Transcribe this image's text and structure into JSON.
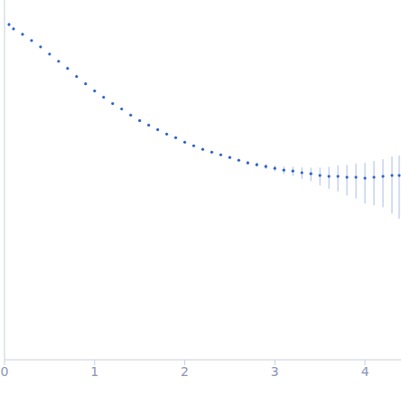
{
  "chart_data": {
    "type": "scatter",
    "x": [
      0.05,
      0.1,
      0.2,
      0.3,
      0.4,
      0.5,
      0.6,
      0.7,
      0.8,
      0.9,
      1.0,
      1.1,
      1.2,
      1.3,
      1.4,
      1.5,
      1.6,
      1.7,
      1.8,
      1.9,
      2.0,
      2.1,
      2.2,
      2.3,
      2.4,
      2.5,
      2.6,
      2.7,
      2.8,
      2.9,
      3.0,
      3.1,
      3.2,
      3.3,
      3.4,
      3.5,
      3.6,
      3.7,
      3.8,
      3.9,
      4.0,
      4.1,
      4.2,
      4.3,
      4.38
    ],
    "values": [
      1.07,
      0.955,
      0.832,
      0.708,
      0.603,
      0.501,
      0.417,
      0.347,
      0.282,
      0.234,
      0.195,
      0.166,
      0.141,
      0.123,
      0.105,
      0.0912,
      0.0813,
      0.0724,
      0.0646,
      0.0589,
      0.0525,
      0.0479,
      0.0437,
      0.0407,
      0.038,
      0.0355,
      0.0331,
      0.0309,
      0.0295,
      0.0282,
      0.0269,
      0.0257,
      0.0251,
      0.024,
      0.0234,
      0.0224,
      0.0219,
      0.0219,
      0.0214,
      0.0214,
      0.0209,
      0.0214,
      0.0219,
      0.0224,
      0.0224
    ],
    "errors": [
      0.05,
      0.005,
      0.004,
      0.003,
      0.003,
      0.002,
      0.002,
      0.002,
      0.001,
      0.001,
      0.001,
      0.001,
      0.001,
      0.001,
      0.001,
      0.001,
      0.001,
      0.001,
      0.001,
      0.001,
      0.001,
      0.001,
      0.001,
      0.001,
      0.001,
      0.001,
      0.0012,
      0.0014,
      0.0016,
      0.0018,
      0.002,
      0.0025,
      0.003,
      0.0035,
      0.004,
      0.005,
      0.006,
      0.007,
      0.008,
      0.009,
      0.01,
      0.011,
      0.012,
      0.014,
      0.015
    ],
    "color": "#2f62c4",
    "marker": "circle",
    "xlim": [
      0,
      4.4
    ],
    "xticks": [
      0,
      1,
      2,
      3,
      4
    ],
    "ylim": [
      0.0002,
      2
    ],
    "yticks": [
      0.001,
      0.01,
      0.1,
      1
    ],
    "log": "y",
    "tick_labels": "x",
    "grid": false
  }
}
